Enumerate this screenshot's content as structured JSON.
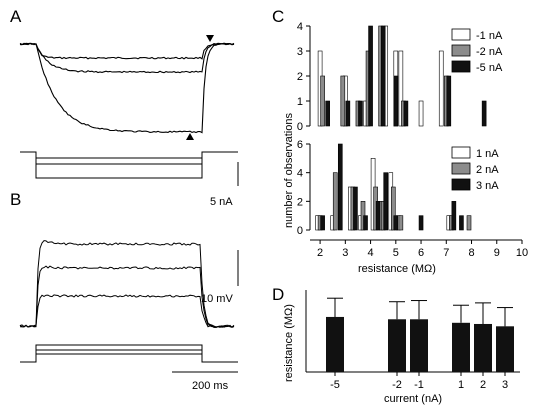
{
  "panels": {
    "a": "A",
    "b": "B",
    "c": "C",
    "d": "D"
  },
  "scalebars": {
    "current": "5 nA",
    "voltage": "10 mV",
    "time": "200 ms"
  },
  "colors": {
    "white": "#ffffff",
    "gray": "#8c8c8c",
    "black": "#111111"
  },
  "chart_data": [
    {
      "type": "bar",
      "panel": "C-top",
      "xlabel": "resistance (MΩ)",
      "ylabel": "number of observations",
      "x_ticks": [
        2,
        3,
        4,
        5,
        6,
        7,
        8,
        9,
        10
      ],
      "xlim": [
        1.6,
        10
      ],
      "ylim": [
        0,
        4
      ],
      "y_ticks": [
        0,
        1,
        2,
        3,
        4
      ],
      "legend": "top-right",
      "series": [
        {
          "name": "-1 nA",
          "color": "white",
          "x": [
            2.0,
            3.0,
            3.8,
            4.6,
            5.0,
            5.2,
            6.0,
            6.8
          ],
          "values": [
            3,
            2,
            1,
            4,
            3,
            3,
            1,
            3
          ]
        },
        {
          "name": "-2 nA",
          "color": "gray",
          "x": [
            2.1,
            2.9,
            3.5,
            3.9,
            4.4,
            5.3,
            7.0
          ],
          "values": [
            2,
            2,
            1,
            3,
            4,
            1,
            2
          ]
        },
        {
          "name": "-5 nA",
          "color": "black",
          "x": [
            2.3,
            3.1,
            3.6,
            4.0,
            4.5,
            5.0,
            5.4,
            7.1,
            8.5
          ],
          "values": [
            1,
            1,
            1,
            4,
            4,
            2,
            1,
            2,
            1
          ]
        }
      ]
    },
    {
      "type": "bar",
      "panel": "C-bottom",
      "xlabel": "resistance (MΩ)",
      "ylabel": "number of observations",
      "x_ticks": [
        2,
        3,
        4,
        5,
        6,
        7,
        8,
        9,
        10
      ],
      "xlim": [
        1.6,
        10
      ],
      "ylim": [
        0,
        6
      ],
      "y_ticks": [
        0,
        2,
        4,
        6
      ],
      "legend": "top-right",
      "series": [
        {
          "name": "1 nA",
          "color": "white",
          "x": [
            1.9,
            2.5,
            3.2,
            3.6,
            4.1,
            4.4,
            4.8,
            5.1,
            7.1
          ],
          "values": [
            1,
            1,
            3,
            1,
            5,
            2,
            4,
            1,
            1
          ]
        },
        {
          "name": "2 nA",
          "color": "gray",
          "x": [
            2.0,
            2.6,
            3.3,
            3.7,
            4.2,
            4.5,
            4.9,
            5.2,
            7.2,
            7.9
          ],
          "values": [
            1,
            4,
            3,
            2,
            3,
            2,
            3,
            1,
            1,
            1
          ]
        },
        {
          "name": "3 nA",
          "color": "black",
          "x": [
            2.1,
            2.8,
            3.4,
            3.8,
            4.3,
            4.6,
            5.0,
            6.0,
            7.3,
            7.6
          ],
          "values": [
            1,
            6,
            3,
            1,
            2,
            4,
            1,
            1,
            2,
            1
          ]
        }
      ]
    },
    {
      "type": "bar",
      "panel": "D",
      "xlabel": "current (nA)",
      "ylabel": "resistance (MΩ)",
      "categories": [
        "-5",
        "-2",
        "-1",
        "1",
        "2",
        "3"
      ],
      "values": [
        4.7,
        4.5,
        4.5,
        4.2,
        4.1,
        3.9
      ],
      "error": [
        1.6,
        1.5,
        1.6,
        1.5,
        1.8,
        1.6
      ],
      "ylim": [
        0,
        7
      ]
    },
    {
      "type": "line",
      "panel": "A",
      "description_sweeps": "Voltage responses to hyperpolarizing current steps (-1, -2, -5 nA)",
      "steps_nA": [
        -1,
        -2,
        -5
      ],
      "markers": [
        "arrowhead-down",
        "arrowhead-up"
      ]
    },
    {
      "type": "line",
      "panel": "B",
      "steps_nA": [
        1,
        2,
        3
      ]
    }
  ]
}
